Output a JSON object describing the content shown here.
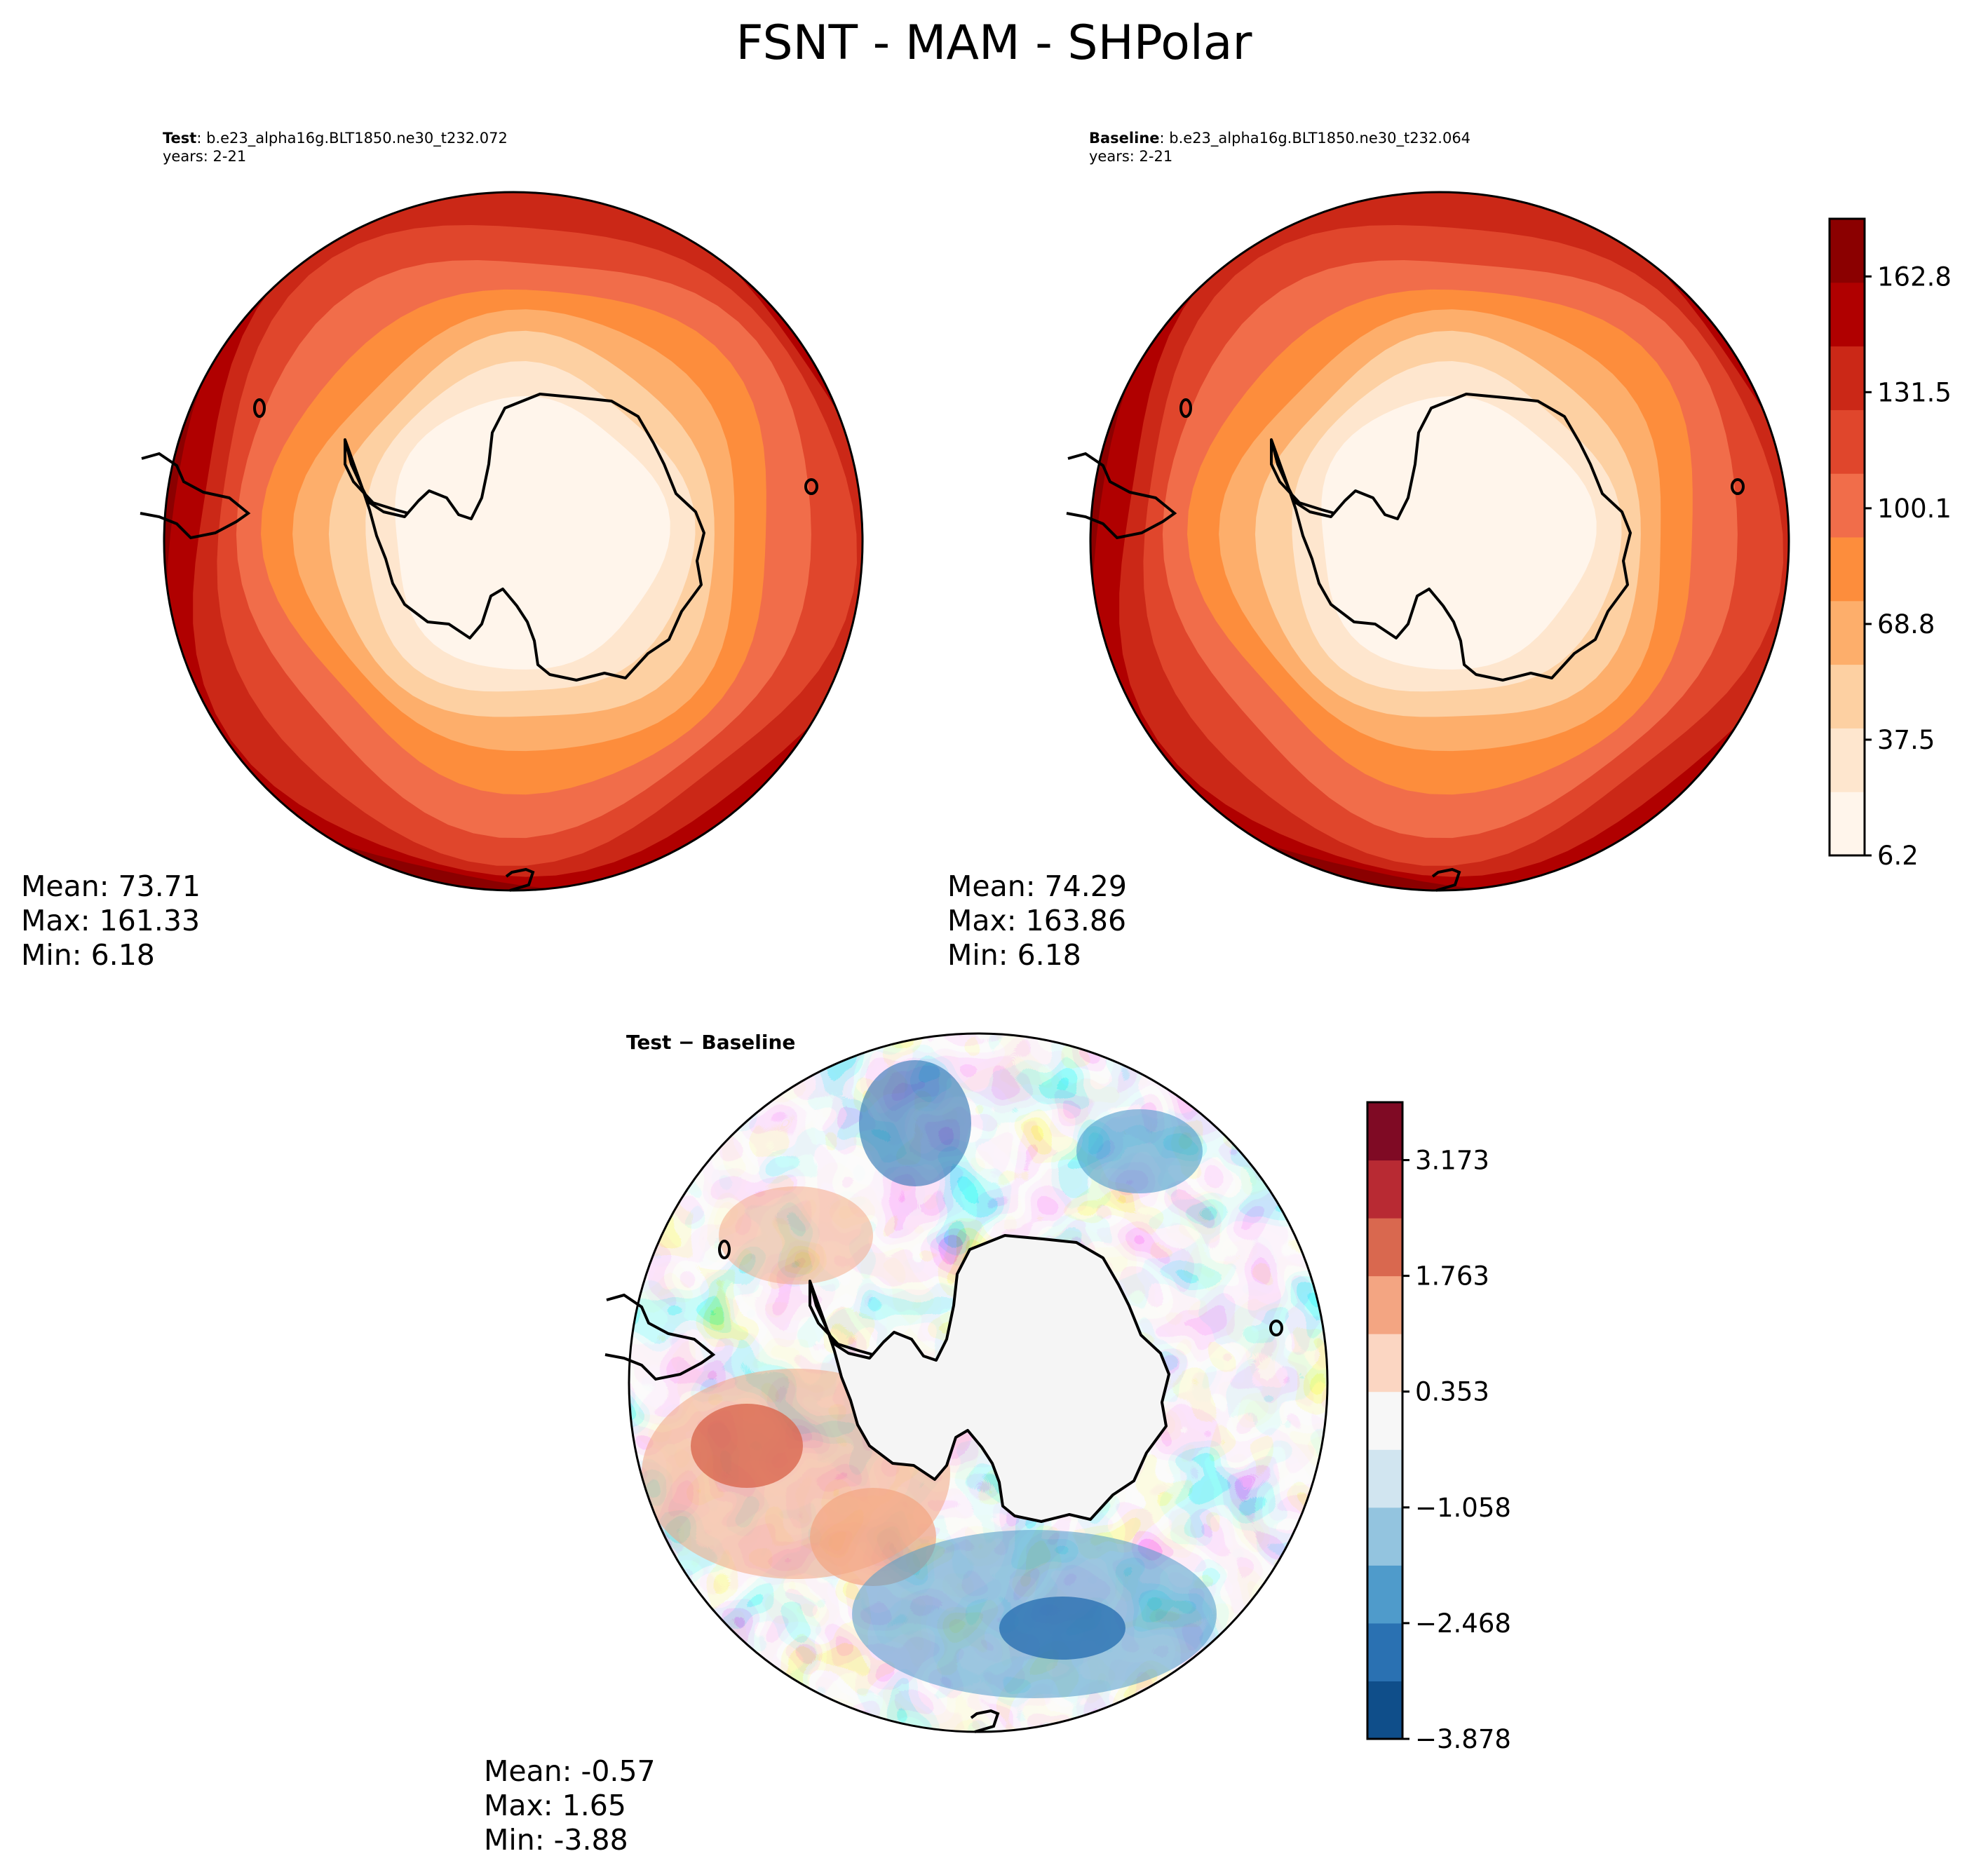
{
  "title": "FSNT - MAM - SHPolar",
  "chart_data": [
    {
      "type": "heatmap",
      "panel": "test",
      "label_bold": "Test",
      "label_text": ": b.e23_alpha16g.BLT1850.ne30_t232.072",
      "years": "years: 2-21",
      "projection": "south-polar-stereographic",
      "stats": {
        "mean": "Mean: 73.71",
        "max": "Max: 161.33",
        "min": "Min:  6.18"
      },
      "mean": 73.71,
      "max": 161.33,
      "min": 6.18
    },
    {
      "type": "heatmap",
      "panel": "baseline",
      "label_bold": "Baseline",
      "label_text": ": b.e23_alpha16g.BLT1850.ne30_t232.064",
      "years": "years: 2-21",
      "projection": "south-polar-stereographic",
      "stats": {
        "mean": "Mean: 74.29",
        "max": "Max: 163.86",
        "min": "Min:  6.18"
      },
      "mean": 74.29,
      "max": 163.86,
      "min": 6.18,
      "colorbar": {
        "range": [
          6.2,
          178.4
        ],
        "tick_labels": [
          "6.2",
          "37.5",
          "68.8",
          "100.1",
          "131.5",
          "162.8"
        ],
        "tick_values": [
          6.2,
          37.5,
          68.8,
          100.1,
          131.5,
          162.8
        ],
        "colors": [
          "#fff5eb",
          "#fee6ce",
          "#fdd0a2",
          "#fdae6b",
          "#fd8d3c",
          "#f16d4a",
          "#e0462c",
          "#cb2817",
          "#b00000",
          "#8b0000"
        ]
      }
    },
    {
      "type": "heatmap",
      "panel": "difference",
      "label_bold": "Test − Baseline",
      "projection": "south-polar-stereographic",
      "stats": {
        "mean": "Mean: -0.57",
        "max": "Max:  1.65",
        "min": "Min: -3.88"
      },
      "mean": -0.57,
      "max": 1.65,
      "min": -3.88,
      "colorbar": {
        "range": [
          -3.878,
          3.878
        ],
        "tick_labels": [
          "−3.878",
          "−2.468",
          "−1.058",
          "0.353",
          "1.763",
          "3.173"
        ],
        "tick_values": [
          -3.878,
          -2.468,
          -1.058,
          0.353,
          1.763,
          3.173
        ],
        "colors": [
          "#0f4e8a",
          "#2a71b2",
          "#4f9bcb",
          "#93c4df",
          "#d1e5f0",
          "#f7f7f7",
          "#fbd6c2",
          "#f3a582",
          "#d9684f",
          "#b82a33",
          "#7f0a24"
        ]
      }
    }
  ]
}
